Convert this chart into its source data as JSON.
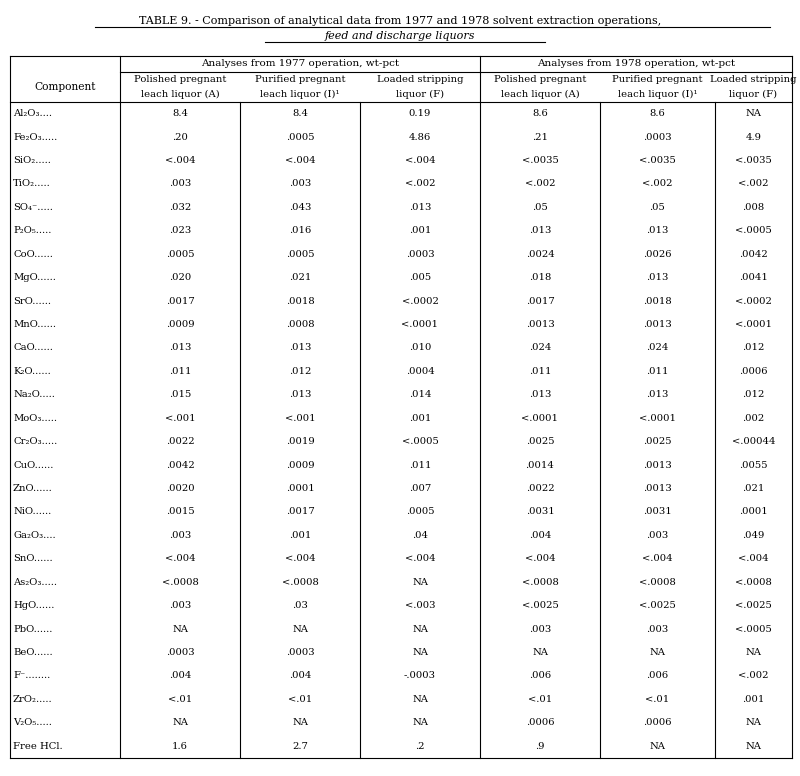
{
  "title_line1": "TABLE 9. - Comparison of analytical data from 1977 and 1978 solvent extraction operations,",
  "title_line2": "feed and discharge liquors",
  "group1_label": "Analyses from 1977 operation, wt-pct",
  "group2_label": "Analyses from 1978 operation, wt-pct",
  "sub_headers": [
    "Component",
    "Polished pregnant\nleach liquor (A)",
    "Purified pregnant\nleach liquor (I)¹",
    "Loaded stripping\nliquor (F)",
    "Polished pregnant\nleach liquor (A)",
    "Purified pregnant\nleach liquor (I)¹",
    "Loaded stripping\nliquor (F)"
  ],
  "rows": [
    [
      "Al₂O₃....",
      "8.4",
      "8.4",
      "0.19",
      "8.6",
      "8.6",
      "NA"
    ],
    [
      "Fe₂O₃.....",
      ".20",
      ".0005",
      "4.86",
      ".21",
      ".0003",
      "4.9"
    ],
    [
      "SiO₂.....",
      "<.004",
      "<.004",
      "<.004",
      "<.0035",
      "<.0035",
      "<.0035"
    ],
    [
      "TiO₂.....",
      ".003",
      ".003",
      "<.002",
      "<.002",
      "<.002",
      "<.002"
    ],
    [
      "SO₄⁻.....",
      ".032",
      ".043",
      ".013",
      ".05",
      ".05",
      ".008"
    ],
    [
      "P₂O₅.....",
      ".023",
      ".016",
      ".001",
      ".013",
      ".013",
      "<.0005"
    ],
    [
      "CoO......",
      ".0005",
      ".0005",
      ".0003",
      ".0024",
      ".0026",
      ".0042"
    ],
    [
      "MgO......",
      ".020",
      ".021",
      ".005",
      ".018",
      ".013",
      ".0041"
    ],
    [
      "SrO......",
      ".0017",
      ".0018",
      "<.0002",
      ".0017",
      ".0018",
      "<.0002"
    ],
    [
      "MnO......",
      ".0009",
      ".0008",
      "<.0001",
      ".0013",
      ".0013",
      "<.0001"
    ],
    [
      "CaO......",
      ".013",
      ".013",
      ".010",
      ".024",
      ".024",
      ".012"
    ],
    [
      "K₂O......",
      ".011",
      ".012",
      ".0004",
      ".011",
      ".011",
      ".0006"
    ],
    [
      "Na₂O.....",
      ".015",
      ".013",
      ".014",
      ".013",
      ".013",
      ".012"
    ],
    [
      "MoO₃.....",
      "<.001",
      "<.001",
      ".001",
      "<.0001",
      "<.0001",
      ".002"
    ],
    [
      "Cr₂O₃.....",
      ".0022",
      ".0019",
      "<.0005",
      ".0025",
      ".0025",
      "<.00044"
    ],
    [
      "CuO......",
      ".0042",
      ".0009",
      ".011",
      ".0014",
      ".0013",
      ".0055"
    ],
    [
      "ZnO......",
      ".0020",
      ".0001",
      ".007",
      ".0022",
      ".0013",
      ".021"
    ],
    [
      "NiO......",
      ".0015",
      ".0017",
      ".0005",
      ".0031",
      ".0031",
      ".0001"
    ],
    [
      "Ga₂O₃....",
      ".003",
      ".001",
      ".04",
      ".004",
      ".003",
      ".049"
    ],
    [
      "SnO......",
      "<.004",
      "<.004",
      "<.004",
      "<.004",
      "<.004",
      "<.004"
    ],
    [
      "As₂O₃.....",
      "<.0008",
      "<.0008",
      "NA",
      "<.0008",
      "<.0008",
      "<.0008"
    ],
    [
      "HgO......",
      ".003",
      ".03",
      "<.003",
      "<.0025",
      "<.0025",
      "<.0025"
    ],
    [
      "PbO......",
      "NA",
      "NA",
      "NA",
      ".003",
      ".003",
      "<.0005"
    ],
    [
      "BeO......",
      ".0003",
      ".0003",
      "NA",
      "NA",
      "NA",
      "NA"
    ],
    [
      "F⁻........",
      ".004",
      ".004",
      "-.0003",
      ".006",
      ".006",
      "<.002"
    ],
    [
      "ZrO₂.....",
      "<.01",
      "<.01",
      "NA",
      "<.01",
      "<.01",
      ".001"
    ],
    [
      "V₂O₅.....",
      "NA",
      "NA",
      "NA",
      ".0006",
      ".0006",
      "NA"
    ],
    [
      "Free HCl.",
      "1.6",
      "2.7",
      ".2",
      ".9",
      "NA",
      "NA"
    ]
  ],
  "bg_color": "#ffffff",
  "text_color": "#000000",
  "font_size": 7.2,
  "title_font_size": 8.0,
  "header_font_size": 7.5
}
